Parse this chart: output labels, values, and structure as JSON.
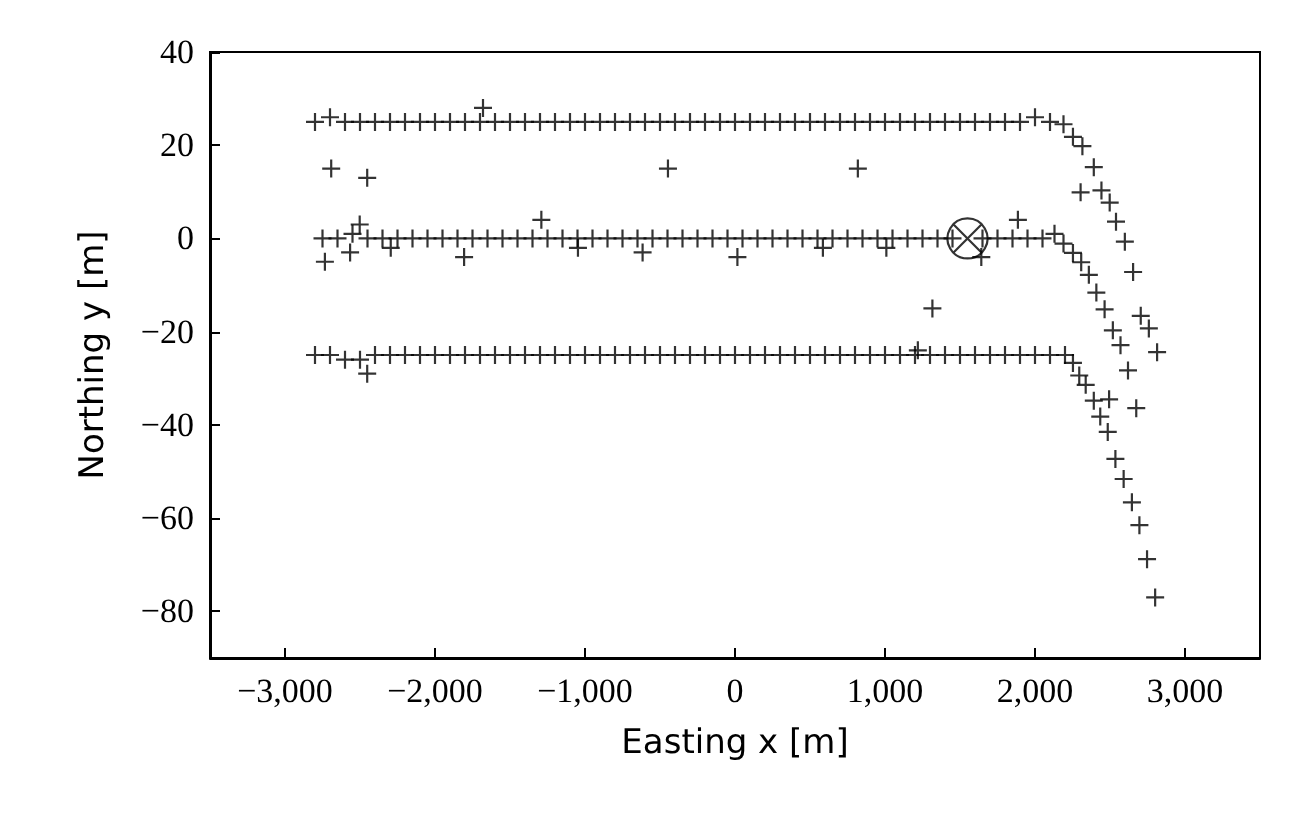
{
  "chart_data": {
    "type": "scatter",
    "xlabel": "Easting x [m]",
    "ylabel": "Northing y [m]",
    "xlim": [
      -3500,
      3500
    ],
    "ylim": [
      -90,
      40
    ],
    "xticks": [
      {
        "value": -3000,
        "label": "−3,000"
      },
      {
        "value": -2000,
        "label": "−2,000"
      },
      {
        "value": -1000,
        "label": "−1,000"
      },
      {
        "value": 0,
        "label": "0"
      },
      {
        "value": 1000,
        "label": "1,000"
      },
      {
        "value": 2000,
        "label": "2,000"
      },
      {
        "value": 3000,
        "label": "3,000"
      }
    ],
    "yticks": [
      {
        "value": 40,
        "label": "40"
      },
      {
        "value": 20,
        "label": "20"
      },
      {
        "value": 0,
        "label": "0"
      },
      {
        "value": -20,
        "label": "−20"
      },
      {
        "value": -40,
        "label": "−40"
      },
      {
        "value": -60,
        "label": "−60"
      },
      {
        "value": -80,
        "label": "−80"
      }
    ],
    "grid": false,
    "series": [
      {
        "color": "#000000",
        "marker": "cross",
        "x": [
          -2800,
          -2700,
          -2600,
          -2500,
          -2400,
          -2300,
          -2200,
          -2100,
          -2000,
          -1900,
          -1800,
          -1700,
          -1600,
          -1500,
          -1400,
          -1300,
          -1200,
          -1100,
          -1000,
          -900,
          -800,
          -700,
          -600,
          -500,
          -400,
          -300,
          -200,
          -100,
          0,
          100,
          200,
          300,
          400,
          500,
          600,
          700,
          800,
          900,
          1000,
          1100,
          1200,
          1300,
          1400,
          1500,
          1600,
          1700,
          1800,
          1900,
          2000,
          2100,
          2190,
          2253,
          2316,
          2392,
          2304,
          2443,
          2498,
          2540,
          2599,
          2654,
          2705,
          2759,
          2814,
          2675,
          -2750,
          -2650,
          -2550,
          -2450,
          -2350,
          -2250,
          -2150,
          -2050,
          -1950,
          -1850,
          -1750,
          -1650,
          -1550,
          -1450,
          -1350,
          -1250,
          -1150,
          -1050,
          -950,
          -850,
          -750,
          -650,
          -550,
          -450,
          -350,
          -250,
          -150,
          -50,
          50,
          150,
          250,
          350,
          450,
          550,
          650,
          750,
          850,
          950,
          1050,
          1150,
          1250,
          1350,
          1450,
          1650,
          1750,
          1850,
          1950,
          2050,
          2130,
          2190,
          2253,
          2308,
          2359,
          2409,
          2464,
          2519,
          2570,
          2620,
          2494,
          2485,
          2536,
          2591,
          2646,
          2696,
          2747,
          2801,
          -2800,
          -2700,
          -2600,
          -2500,
          -2400,
          -2300,
          -2200,
          -2100,
          -2000,
          -1900,
          -1800,
          -1700,
          -1600,
          -1500,
          -1400,
          -1300,
          -1200,
          -1100,
          -1000,
          -900,
          -800,
          -700,
          -600,
          -500,
          -400,
          -300,
          -200,
          -100,
          0,
          100,
          200,
          300,
          400,
          500,
          600,
          700,
          800,
          900,
          1000,
          1100,
          1200,
          1300,
          1400,
          1500,
          1600,
          1700,
          1800,
          1900,
          2000,
          2100,
          2200,
          2253,
          2295,
          2338,
          2392,
          2435,
          -2692,
          -2452,
          -447,
          819,
          -1680,
          -2734,
          -2566,
          -2502,
          -2295,
          -1806,
          -1291,
          -1047,
          -616,
          16,
          -2452,
          586,
          1009,
          1886,
          1642,
          1316,
          1219
        ],
        "values": [
          25,
          26,
          25,
          25,
          25,
          25,
          25,
          25,
          25,
          25,
          25,
          25,
          25,
          25,
          25,
          25,
          25,
          25,
          25,
          25,
          25,
          25,
          25,
          25,
          25,
          25,
          25,
          25,
          25,
          25,
          25,
          25,
          25,
          25,
          25,
          25,
          25,
          25,
          25,
          25,
          25,
          25,
          25,
          25,
          25,
          25,
          25,
          25,
          26,
          25,
          24.5,
          21.8,
          19.8,
          15.3,
          9.9,
          10.3,
          7.7,
          3.6,
          -0.7,
          -7.2,
          -16.6,
          -19.3,
          -24.4,
          -36.4,
          0,
          0,
          1,
          0,
          0,
          0,
          0,
          0,
          0,
          0,
          0,
          0,
          0,
          0,
          0,
          0,
          0,
          0,
          0,
          0,
          0,
          0,
          0,
          0,
          0,
          0,
          0,
          0,
          0,
          0,
          0,
          0,
          0,
          0,
          0,
          0,
          0,
          0,
          0,
          0,
          0,
          0,
          0,
          0,
          0,
          0,
          0,
          0,
          1,
          -1.1,
          -3.1,
          -5.1,
          -7.8,
          -11.6,
          -15.2,
          -19.7,
          -22.9,
          -28.3,
          -34.5,
          -41.5,
          -47.3,
          -51.6,
          -56.6,
          -61.5,
          -68.8,
          -77,
          -25,
          -25,
          -26,
          -26,
          -25,
          -25,
          -25,
          -25,
          -25,
          -25,
          -25,
          -25,
          -25,
          -25,
          -25,
          -25,
          -25,
          -25,
          -25,
          -25,
          -25,
          -25,
          -25,
          -25,
          -25,
          -25,
          -25,
          -25,
          -25,
          -25,
          -25,
          -25,
          -25,
          -25,
          -25,
          -25,
          -25,
          -25,
          -25,
          -25,
          -25,
          -25,
          -25,
          -25,
          -25,
          -25,
          -25,
          -25,
          -25,
          -25,
          -25,
          -26.7,
          -29.4,
          -31.4,
          -34.8,
          -38.2,
          15,
          13,
          15,
          15,
          28,
          -5,
          -3,
          3,
          -2,
          -4,
          4,
          -2,
          -3,
          -4,
          -29,
          -2,
          -2,
          4,
          -4,
          -15,
          -24
        ]
      },
      {
        "color": "#000000",
        "x": [
          1550
        ],
        "values": [
          0
        ]
      }
    ]
  }
}
